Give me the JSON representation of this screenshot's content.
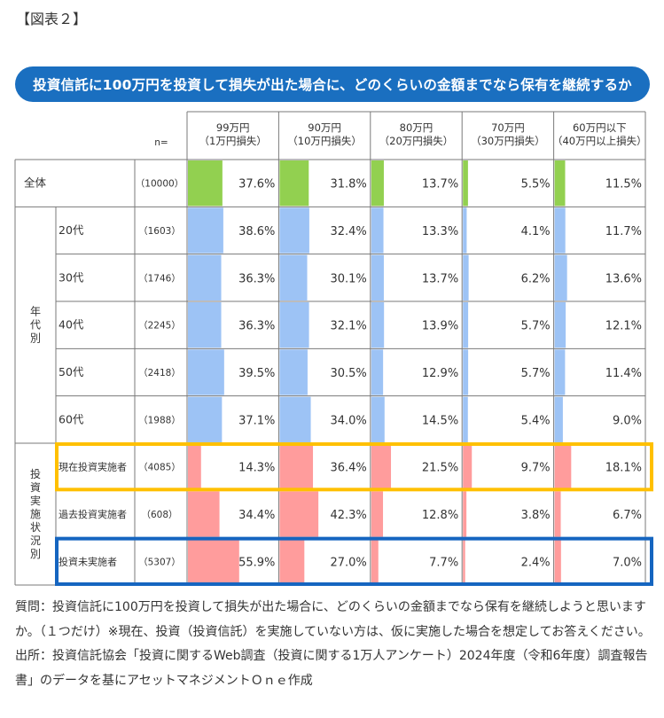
{
  "figure_label": "【図表２】",
  "chart_data": {
    "type": "table",
    "title": "投資信託に100万円を投資して損失が出た場合に、どのくらいの金額までなら保有を継続するか",
    "n_header": "n=",
    "columns": [
      {
        "line1": "99万円",
        "line2": "（1万円損失）"
      },
      {
        "line1": "90万円",
        "line2": "（10万円損失）"
      },
      {
        "line1": "80万円",
        "line2": "（20万円損失）"
      },
      {
        "line1": "70万円",
        "line2": "（30万円損失）"
      },
      {
        "line1": "60万円以下",
        "line2": "（40万円以上損失）"
      }
    ],
    "groups": [
      {
        "label": "",
        "rows": [
          {
            "label": "全体",
            "n": "（10000）",
            "color": "#92d050",
            "values": [
              37.6,
              31.8,
              13.7,
              5.5,
              11.5
            ]
          }
        ]
      },
      {
        "label": "年代別",
        "rows": [
          {
            "label": "20代",
            "n": "（1603）",
            "color": "#9dc3f5",
            "values": [
              38.6,
              32.4,
              13.3,
              4.1,
              11.7
            ]
          },
          {
            "label": "30代",
            "n": "（1746）",
            "color": "#9dc3f5",
            "values": [
              36.3,
              30.1,
              13.7,
              6.2,
              13.6
            ]
          },
          {
            "label": "40代",
            "n": "（2245）",
            "color": "#9dc3f5",
            "values": [
              36.3,
              32.1,
              13.9,
              5.7,
              12.1
            ]
          },
          {
            "label": "50代",
            "n": "（2418）",
            "color": "#9dc3f5",
            "values": [
              39.5,
              30.5,
              12.9,
              5.7,
              11.4
            ]
          },
          {
            "label": "60代",
            "n": "（1988）",
            "color": "#9dc3f5",
            "values": [
              37.1,
              34.0,
              14.5,
              5.4,
              9.0
            ]
          }
        ]
      },
      {
        "label": "投資実施状況別",
        "rows": [
          {
            "label": "現在投資実施者",
            "n": "（4085）",
            "color": "#ff9c9c",
            "values": [
              14.3,
              36.4,
              21.5,
              9.7,
              18.1
            ],
            "highlight": "#ffc000"
          },
          {
            "label": "過去投資実施者",
            "n": "（608）",
            "color": "#ff9c9c",
            "values": [
              34.4,
              42.3,
              12.8,
              3.8,
              6.7
            ]
          },
          {
            "label": "投資未実施者",
            "n": "（5307）",
            "color": "#ff9c9c",
            "values": [
              55.9,
              27.0,
              7.7,
              2.4,
              7.0
            ],
            "highlight": "#1565c0"
          }
        ]
      }
    ],
    "value_suffix": "%"
  },
  "notes": {
    "question": "質問：投資信託に100万円を投資して損失が出た場合に、どのくらいの金額までなら保有を継続しようと思いますか。（１つだけ）※現在、投資（投資信託）を実施していない方は、仮に実施した場合を想定してお答えください。",
    "source": "出所：投資信託協会「投資に関するWeb調査（投資に関する1万人アンケート）2024年度（令和6年度）調査報告書」のデータを基にアセットマネジメントＯｎｅ作成"
  }
}
